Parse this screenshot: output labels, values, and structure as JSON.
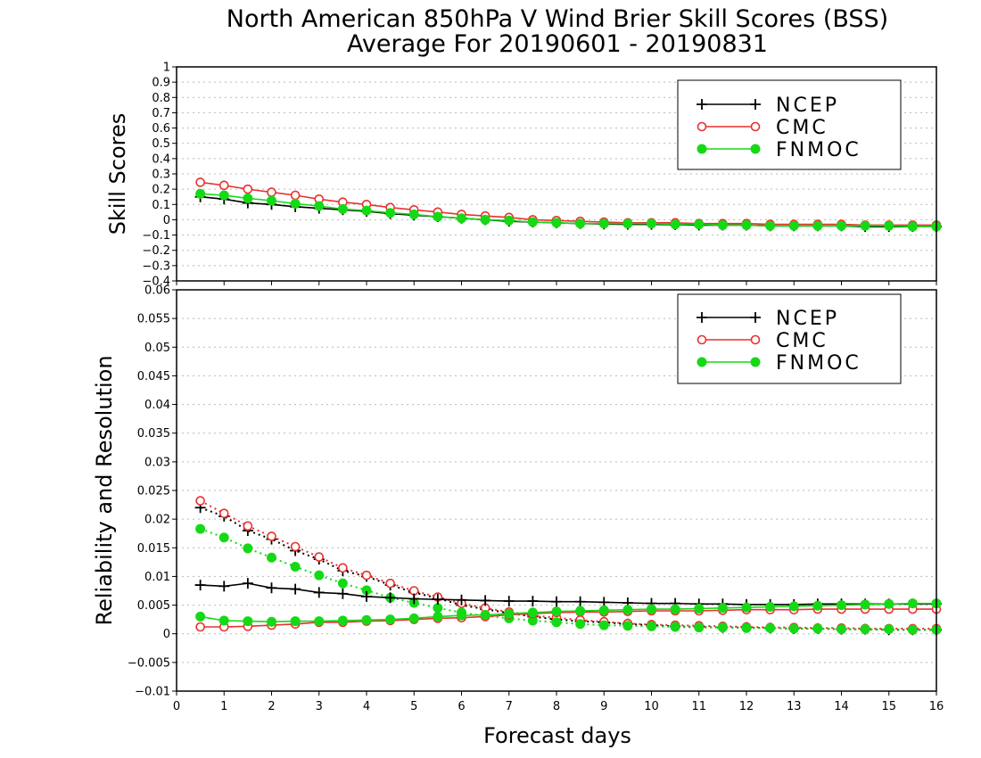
{
  "chart_data": {
    "title": "North American 850hPa V Wind Brier Skill Scores (BSS)",
    "subtitle": "Average For 20190601 - 20190831",
    "xlabel": "Forecast days",
    "xlim": [
      0,
      16
    ],
    "x_ticks": [
      "0",
      "1",
      "2",
      "3",
      "4",
      "5",
      "6",
      "7",
      "8",
      "9",
      "10",
      "11",
      "12",
      "13",
      "14",
      "15",
      "16"
    ],
    "x": [
      0.5,
      1,
      1.5,
      2,
      2.5,
      3,
      3.5,
      4,
      4.5,
      5,
      5.5,
      6,
      6.5,
      7,
      7.5,
      8,
      8.5,
      9,
      9.5,
      10,
      10.5,
      11,
      11.5,
      12,
      12.5,
      13,
      13.5,
      14,
      14.5,
      15,
      15.5,
      16
    ],
    "legend": [
      {
        "name": "NCEP",
        "color": "#000000",
        "marker": "plus"
      },
      {
        "name": "CMC",
        "color": "#e8312f",
        "marker": "open-circle"
      },
      {
        "name": "FNMOC",
        "color": "#16d916",
        "marker": "filled-circle"
      }
    ],
    "panels": [
      {
        "type": "line",
        "ylabel": "Skill Scores",
        "ylim": [
          -0.4,
          1
        ],
        "y_ticks": [
          "1",
          "0.9",
          "0.8",
          "0.7",
          "0.6",
          "0.5",
          "0.4",
          "0.3",
          "0.2",
          "0.1",
          "0",
          "−0.1",
          "−0.2",
          "−0.3",
          "−0.4"
        ],
        "series": [
          {
            "name": "NCEP",
            "style": "solid",
            "values": [
              0.15,
              0.135,
              0.11,
              0.1,
              0.085,
              0.075,
              0.065,
              0.055,
              0.04,
              0.03,
              0.02,
              0.01,
              0,
              -0.01,
              -0.015,
              -0.02,
              -0.025,
              -0.028,
              -0.03,
              -0.03,
              -0.032,
              -0.035,
              -0.035,
              -0.035,
              -0.04,
              -0.04,
              -0.04,
              -0.04,
              -0.045,
              -0.045,
              -0.045,
              -0.045
            ]
          },
          {
            "name": "CMC",
            "style": "solid",
            "values": [
              0.245,
              0.225,
              0.2,
              0.18,
              0.16,
              0.135,
              0.115,
              0.1,
              0.08,
              0.065,
              0.05,
              0.035,
              0.025,
              0.015,
              0,
              -0.005,
              -0.01,
              -0.015,
              -0.02,
              -0.02,
              -0.02,
              -0.025,
              -0.025,
              -0.025,
              -0.03,
              -0.03,
              -0.03,
              -0.03,
              -0.035,
              -0.035,
              -0.035,
              -0.035
            ]
          },
          {
            "name": "FNMOC",
            "style": "solid",
            "values": [
              0.17,
              0.16,
              0.14,
              0.125,
              0.105,
              0.09,
              0.07,
              0.06,
              0.045,
              0.035,
              0.02,
              0.01,
              0,
              -0.005,
              -0.015,
              -0.02,
              -0.025,
              -0.025,
              -0.025,
              -0.025,
              -0.03,
              -0.03,
              -0.035,
              -0.035,
              -0.04,
              -0.04,
              -0.04,
              -0.04,
              -0.04,
              -0.04,
              -0.045,
              -0.045
            ]
          }
        ]
      },
      {
        "type": "line",
        "ylabel": "Reliability and Resolution",
        "ylim": [
          -0.01,
          0.06
        ],
        "y_ticks": [
          "0.06",
          "0.055",
          "0.05",
          "0.045",
          "0.04",
          "0.035",
          "0.03",
          "0.025",
          "0.02",
          "0.015",
          "0.01",
          "0.005",
          "0",
          "−0.005",
          "−0.01"
        ],
        "series": [
          {
            "name": "NCEP",
            "style": "solid",
            "values": [
              0.0085,
              0.0083,
              0.0088,
              0.008,
              0.0078,
              0.0072,
              0.007,
              0.0065,
              0.0063,
              0.0061,
              0.006,
              0.0059,
              0.0058,
              0.0057,
              0.0057,
              0.0056,
              0.0056,
              0.0055,
              0.0054,
              0.0053,
              0.0053,
              0.0052,
              0.0052,
              0.0051,
              0.0051,
              0.0051,
              0.0052,
              0.0052,
              0.0052,
              0.0052,
              0.0052,
              0.0052
            ]
          },
          {
            "name": "NCEP",
            "style": "dotted",
            "values": [
              0.022,
              0.0205,
              0.018,
              0.0165,
              0.0145,
              0.013,
              0.011,
              0.01,
              0.0085,
              0.0072,
              0.0062,
              0.005,
              0.0043,
              0.0036,
              0.003,
              0.0025,
              0.0022,
              0.002,
              0.0017,
              0.0015,
              0.0013,
              0.0012,
              0.0011,
              0.0011,
              0.001,
              0.0009,
              0.0009,
              0.0008,
              0.0008,
              0.0007,
              0.0007,
              0.0007
            ]
          },
          {
            "name": "CMC",
            "style": "solid",
            "values": [
              0.0012,
              0.0012,
              0.0013,
              0.0015,
              0.0017,
              0.002,
              0.002,
              0.0022,
              0.0023,
              0.0025,
              0.0027,
              0.0028,
              0.003,
              0.0033,
              0.0035,
              0.0037,
              0.0038,
              0.0038,
              0.0039,
              0.004,
              0.004,
              0.004,
              0.0041,
              0.0042,
              0.0042,
              0.0042,
              0.0043,
              0.0043,
              0.0043,
              0.0043,
              0.0043,
              0.0043
            ]
          },
          {
            "name": "CMC",
            "style": "dotted",
            "values": [
              0.0232,
              0.021,
              0.0188,
              0.017,
              0.0152,
              0.0134,
              0.0115,
              0.0102,
              0.0088,
              0.0075,
              0.0064,
              0.0053,
              0.0045,
              0.0038,
              0.0032,
              0.0028,
              0.0024,
              0.0021,
              0.0018,
              0.0016,
              0.0015,
              0.0014,
              0.0013,
              0.0012,
              0.0011,
              0.0011,
              0.001,
              0.001,
              0.0009,
              0.0009,
              0.0009,
              0.0009
            ]
          },
          {
            "name": "FNMOC",
            "style": "solid",
            "values": [
              0.003,
              0.0023,
              0.0022,
              0.0021,
              0.0022,
              0.0022,
              0.0023,
              0.0024,
              0.0025,
              0.0027,
              0.003,
              0.0032,
              0.0033,
              0.0035,
              0.0037,
              0.0039,
              0.004,
              0.0041,
              0.0042,
              0.0043,
              0.0043,
              0.0044,
              0.0045,
              0.0046,
              0.0047,
              0.0048,
              0.0049,
              0.005,
              0.0051,
              0.0052,
              0.0053,
              0.0053
            ]
          },
          {
            "name": "FNMOC",
            "style": "dotted",
            "values": [
              0.0183,
              0.0168,
              0.0149,
              0.0133,
              0.0117,
              0.0102,
              0.0088,
              0.0076,
              0.0063,
              0.0054,
              0.0045,
              0.0037,
              0.0031,
              0.0027,
              0.0023,
              0.002,
              0.0017,
              0.0015,
              0.0014,
              0.0013,
              0.0012,
              0.0011,
              0.0011,
              0.001,
              0.001,
              0.0009,
              0.0009,
              0.0008,
              0.0008,
              0.0008,
              0.0007,
              0.0007
            ]
          }
        ]
      }
    ]
  }
}
